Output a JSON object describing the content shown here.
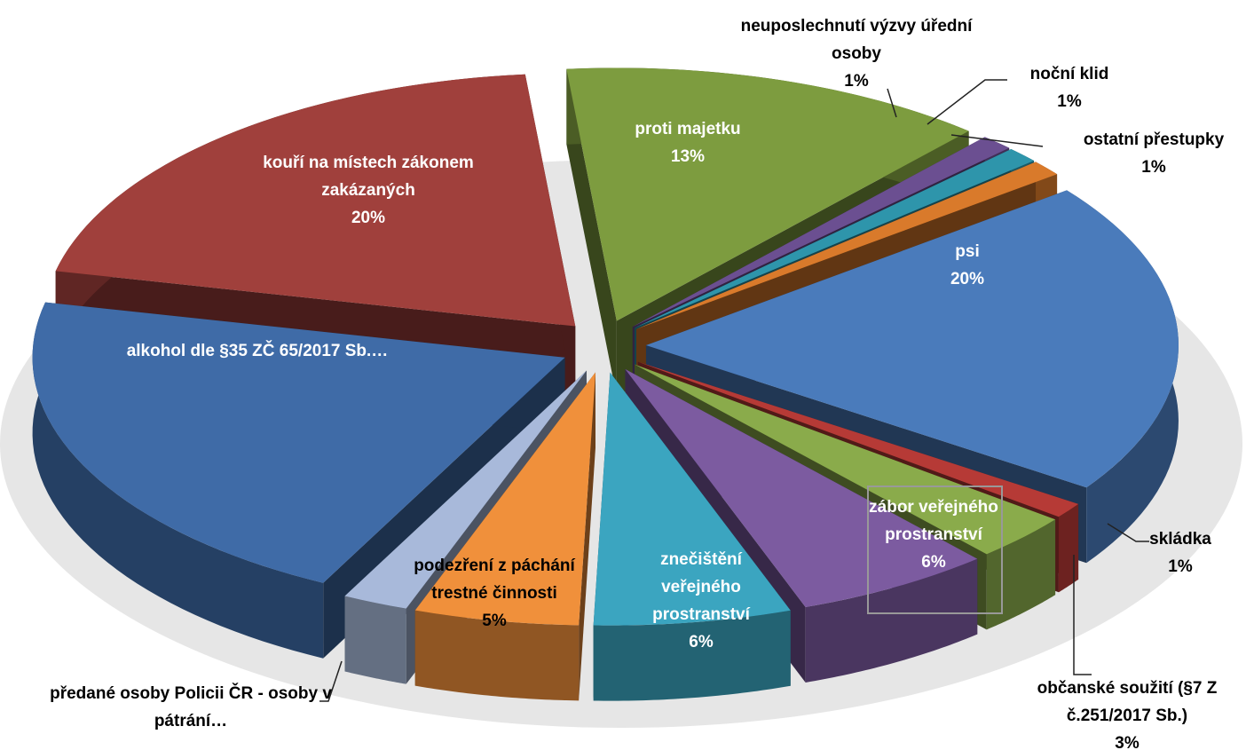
{
  "chart_data": {
    "type": "pie",
    "categories": [
      "proti majetku",
      "neuposlechnutí výzvy úřední osoby",
      "noční klid",
      "ostatní přestupky",
      "psi",
      "skládka",
      "občanské soužití (§7 Z č.251/2017 Sb.)",
      "zábor veřejného prostranství",
      "znečištění veřejného prostranství",
      "podezření z páchání trestné činnosti",
      "předané osoby Policii ČR - osoby v pátrání…",
      "alkohol dle §35 ZČ 65/2017 Sb.…",
      "kouří na místech zákonem zakázaných"
    ],
    "values": [
      13,
      1,
      1,
      1,
      20,
      1,
      3,
      6,
      6,
      5,
      2,
      21,
      20
    ],
    "value_labels": [
      "13%",
      "1%",
      "1%",
      "1%",
      "20%",
      "1%",
      "3%",
      "6%",
      "6%",
      "5%",
      null,
      null,
      "20%"
    ],
    "colors": [
      "#7d9c3f",
      "#6b4f91",
      "#2e95ab",
      "#d97a2b",
      "#4a7bbb",
      "#b63a36",
      "#8aab4b",
      "#7c5ba0",
      "#3ba5c0",
      "#f0903b",
      "#a8b9da",
      "#3f6ba7",
      "#a0403c"
    ]
  }
}
